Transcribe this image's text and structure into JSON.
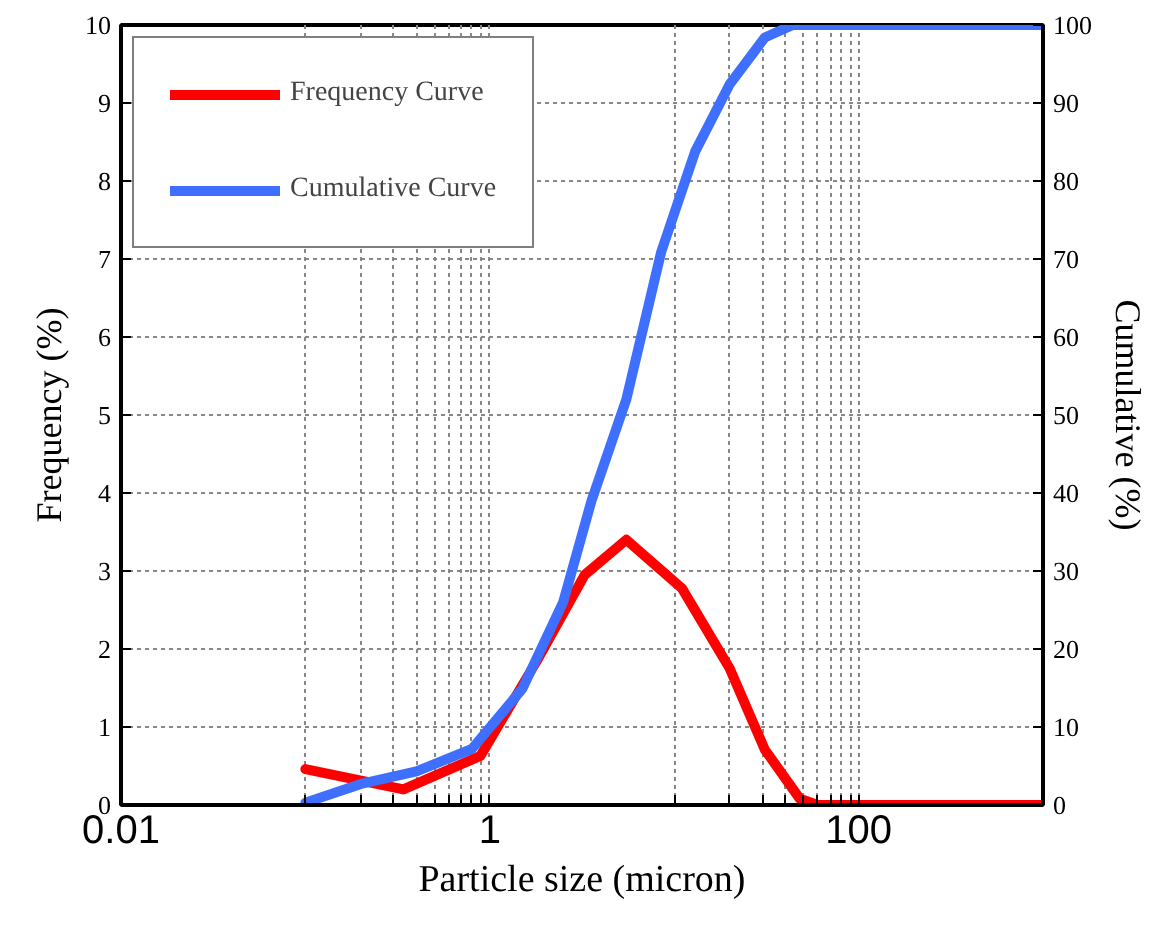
{
  "chart_data": {
    "type": "line",
    "xlabel": "Particle size (micron)",
    "ylabel": "Frequency (%)",
    "y2label": "Cumulative (%)",
    "xlim": [
      0.01,
      1000
    ],
    "ylim": [
      0,
      10
    ],
    "y2lim": [
      0,
      100
    ],
    "xticks": [
      0.01,
      {
        "value": 0.1,
        "label": null
      },
      {
        "value": 0.2,
        "label": null
      },
      {
        "value": 0.3,
        "label": null
      },
      {
        "value": 0.4,
        "label": null
      },
      {
        "value": 0.5,
        "label": null
      },
      {
        "value": 0.6,
        "label": null
      },
      {
        "value": 0.7,
        "label": null
      },
      {
        "value": 0.8,
        "label": null
      },
      {
        "value": 0.9,
        "label": null
      },
      1,
      {
        "value": 10,
        "label": null
      },
      {
        "value": 20,
        "label": null
      },
      {
        "value": 30,
        "label": null
      },
      {
        "value": 40,
        "label": null
      },
      {
        "value": 50,
        "label": null
      },
      {
        "value": 60,
        "label": null
      },
      {
        "value": 70,
        "label": null
      },
      {
        "value": 80,
        "label": null
      },
      {
        "value": 90,
        "label": null
      },
      100
    ],
    "yticks": [
      0,
      1,
      2,
      3,
      4,
      5,
      6,
      7,
      8,
      9,
      10
    ],
    "y2ticks": [
      0,
      10,
      20,
      30,
      40,
      50,
      60,
      70,
      80,
      90,
      100
    ],
    "grid": true,
    "log": "x",
    "legend": "top left",
    "marker": "none",
    "line_style": "solid",
    "series": [
      {
        "name": "Frequency Curve",
        "color": "#ff0000",
        "x": [
          0.1,
          0.34,
          0.89,
          1.78,
          3.27,
          5.5,
          11,
          20,
          31,
          48,
          60,
          1000
        ],
        "values": [
          0.46,
          0.2,
          0.63,
          1.83,
          2.95,
          3.4,
          2.78,
          1.75,
          0.71,
          0.08,
          0,
          0
        ]
      },
      {
        "name": "Cumulative Curve",
        "color": "#3f6fff",
        "axis": "y2",
        "x": [
          0.1,
          0.2,
          0.4,
          0.8,
          1.5,
          2.5,
          3.56,
          5.5,
          8.5,
          13,
          20,
          31,
          44,
          1000
        ],
        "values": [
          0.3,
          2.7,
          4.3,
          7.2,
          14.9,
          26,
          39,
          52,
          70.9,
          83.8,
          92.4,
          98.4,
          100,
          100
        ]
      }
    ]
  }
}
